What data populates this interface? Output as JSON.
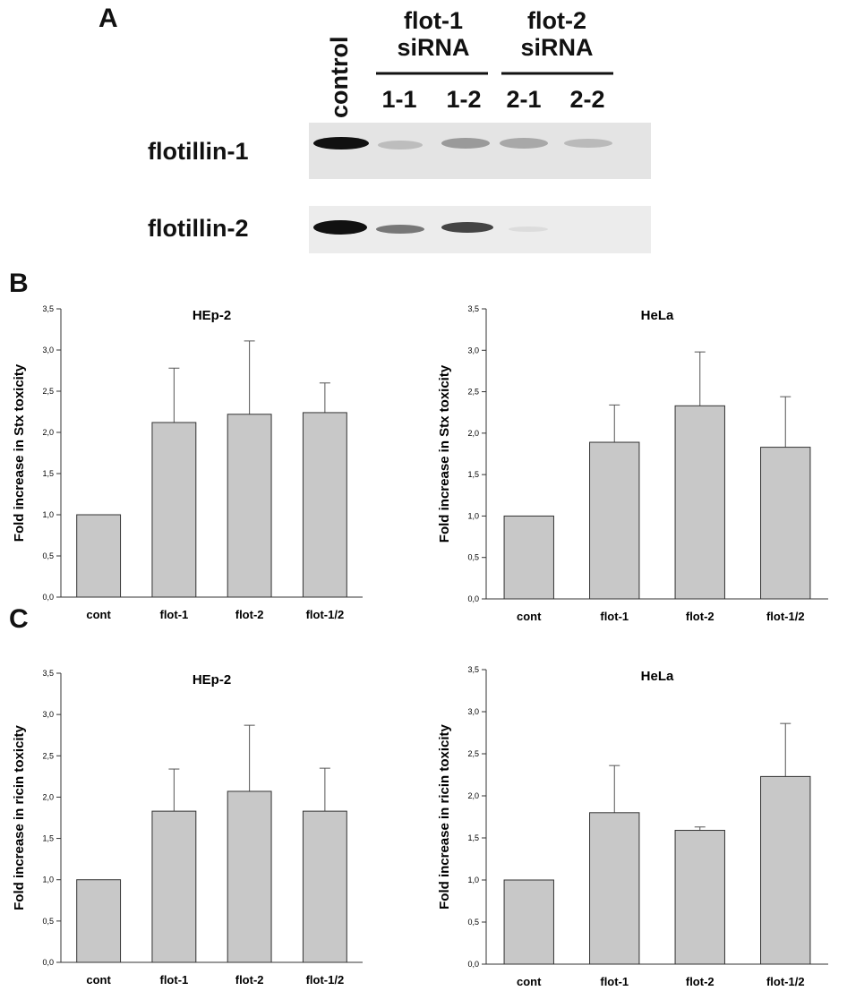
{
  "panels": [
    "A",
    "B",
    "C"
  ],
  "blot": {
    "lanes": [
      "control",
      "1-1",
      "1-2",
      "2-1",
      "2-2"
    ],
    "groups": [
      "flot-1 siRNA",
      "flot-2 siRNA"
    ],
    "rows": [
      "flotillin-1",
      "flotillin-2"
    ]
  },
  "chart_data": [
    {
      "type": "bar",
      "title": "HEp-2",
      "ylabel": "Fold increase in Stx toxicity",
      "color": "#c8c8c8",
      "categories": [
        "cont",
        "flot-1",
        "flot-2",
        "flot-1/2"
      ],
      "values": [
        1.0,
        2.12,
        2.22,
        2.24
      ],
      "errors": [
        null,
        0.66,
        0.89,
        0.36
      ],
      "ylim": [
        0,
        3.5
      ],
      "yticks": [
        {
          "value": 0,
          "label": "0,0"
        },
        {
          "value": 0.5,
          "label": "0,5"
        },
        {
          "value": 1,
          "label": "1,0"
        },
        {
          "value": 1.5,
          "label": "1,5"
        },
        {
          "value": 2,
          "label": "2,0"
        },
        {
          "value": 2.5,
          "label": "2,5"
        },
        {
          "value": 3,
          "label": "3,0"
        },
        {
          "value": 3.5,
          "label": "3,5"
        }
      ]
    },
    {
      "type": "bar",
      "title": "HeLa",
      "ylabel": "Fold increase in Stx toxicity",
      "color": "#c8c8c8",
      "categories": [
        "cont",
        "flot-1",
        "flot-2",
        "flot-1/2"
      ],
      "values": [
        1.0,
        1.89,
        2.33,
        1.83
      ],
      "errors": [
        null,
        0.45,
        0.65,
        0.61
      ],
      "ylim": [
        0,
        3.5
      ],
      "yticks": [
        {
          "value": 0,
          "label": "0,0"
        },
        {
          "value": 0.5,
          "label": "0,5"
        },
        {
          "value": 1,
          "label": "1,0"
        },
        {
          "value": 1.5,
          "label": "1,5"
        },
        {
          "value": 2,
          "label": "2,0"
        },
        {
          "value": 2.5,
          "label": "2,5"
        },
        {
          "value": 3,
          "label": "3,0"
        },
        {
          "value": 3.5,
          "label": "3,5"
        }
      ]
    },
    {
      "type": "bar",
      "title": "HEp-2",
      "ylabel": "Fold increase in ricin toxicity",
      "color": "#c8c8c8",
      "categories": [
        "cont",
        "flot-1",
        "flot-2",
        "flot-1/2"
      ],
      "values": [
        1.0,
        1.83,
        2.07,
        1.83
      ],
      "errors": [
        null,
        0.51,
        0.8,
        0.52
      ],
      "ylim": [
        0,
        3.5
      ],
      "yticks": [
        {
          "value": 0,
          "label": "0,0"
        },
        {
          "value": 0.5,
          "label": "0,5"
        },
        {
          "value": 1,
          "label": "1,0"
        },
        {
          "value": 1.5,
          "label": "1,5"
        },
        {
          "value": 2,
          "label": "2,0"
        },
        {
          "value": 2.5,
          "label": "2,5"
        },
        {
          "value": 3,
          "label": "3,0"
        },
        {
          "value": 3.5,
          "label": "3,5"
        }
      ]
    },
    {
      "type": "bar",
      "title": "HeLa",
      "ylabel": "Fold increase in ricin toxicity",
      "color": "#c8c8c8",
      "categories": [
        "cont",
        "flot-1",
        "flot-2",
        "flot-1/2"
      ],
      "values": [
        1.0,
        1.8,
        1.59,
        2.23
      ],
      "errors": [
        null,
        0.56,
        0.04,
        0.63
      ],
      "ylim": [
        0,
        3.5
      ],
      "yticks": [
        {
          "value": 0,
          "label": "0,0"
        },
        {
          "value": 0.5,
          "label": "0,5"
        },
        {
          "value": 1,
          "label": "1,0"
        },
        {
          "value": 1.5,
          "label": "1,5"
        },
        {
          "value": 2,
          "label": "2,0"
        },
        {
          "value": 2.5,
          "label": "2,5"
        },
        {
          "value": 3,
          "label": "3,0"
        },
        {
          "value": 3.5,
          "label": "3,5"
        }
      ]
    }
  ]
}
